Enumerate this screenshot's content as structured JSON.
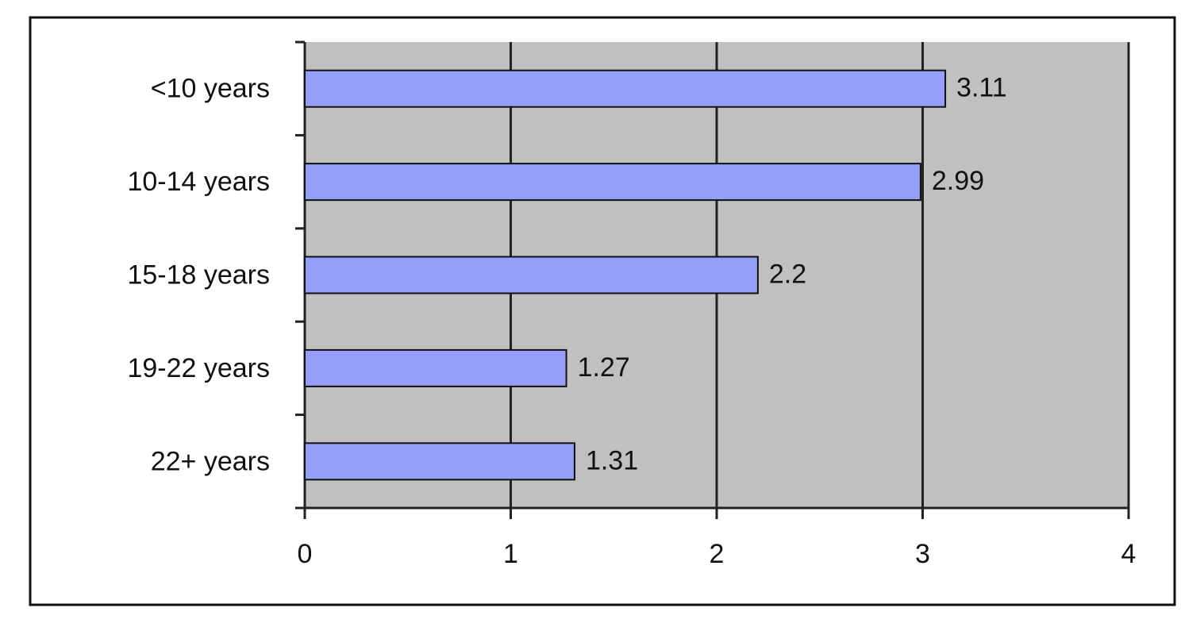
{
  "chart_data": {
    "type": "bar",
    "orientation": "horizontal",
    "categories": [
      "<10 years",
      "10-14 years",
      "15-18 years",
      "19-22 years",
      "22+ years"
    ],
    "values": [
      3.11,
      2.99,
      2.2,
      1.27,
      1.31
    ],
    "color": "#959ef9",
    "xlim": [
      0,
      4
    ],
    "xticks": [
      0,
      1,
      2,
      3,
      4
    ],
    "grid": true
  }
}
